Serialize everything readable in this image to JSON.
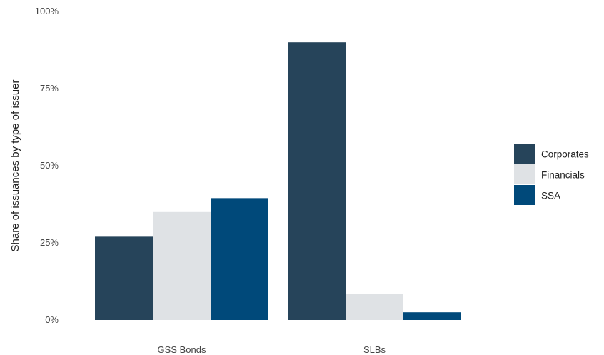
{
  "chart_data": {
    "type": "bar",
    "ylabel": "Share of issuances by type of issuer",
    "xlabel": "",
    "categories": [
      "GSS Bonds",
      "SLBs"
    ],
    "series": [
      {
        "name": "Corporates",
        "values": [
          27,
          90
        ],
        "color": "#26445a"
      },
      {
        "name": "Financials",
        "values": [
          35,
          8.5
        ],
        "color": "#dfe2e5"
      },
      {
        "name": "SSA",
        "values": [
          39.5,
          2.5
        ],
        "color": "#00497a"
      }
    ],
    "ylim": [
      0,
      100
    ],
    "yticks": [
      0,
      25,
      50,
      75,
      100
    ],
    "ytick_labels": [
      "0%",
      "25%",
      "50%",
      "75%",
      "100%"
    ],
    "grid": false,
    "legend_position": "right"
  }
}
